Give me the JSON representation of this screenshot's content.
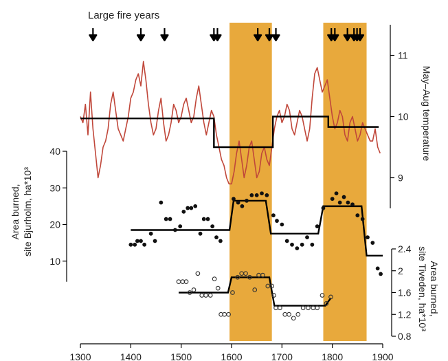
{
  "chart_data": {
    "type": "line",
    "title": "",
    "x_axis": {
      "range": [
        1300,
        1900
      ],
      "ticks": [
        1300,
        1400,
        1500,
        1600,
        1700,
        1800,
        1900
      ]
    },
    "shaded_periods": [
      {
        "start": 1596,
        "end": 1680,
        "color": "#e8a93c"
      },
      {
        "start": 1782,
        "end": 1868,
        "color": "#e8a93c"
      }
    ],
    "fire_years": {
      "label": "Large fire years",
      "years": [
        1325,
        1420,
        1467,
        1565,
        1572,
        1652,
        1675,
        1688,
        1798,
        1805,
        1830,
        1843,
        1849,
        1855
      ]
    },
    "temperature": {
      "axis_label": "May–Aug temperature",
      "range": [
        8.5,
        11.5
      ],
      "ticks": [
        9,
        10,
        11
      ],
      "color": "#c0473a",
      "x": [
        1300,
        1305,
        1310,
        1315,
        1320,
        1325,
        1330,
        1335,
        1340,
        1345,
        1350,
        1355,
        1360,
        1365,
        1370,
        1375,
        1380,
        1385,
        1390,
        1395,
        1400,
        1405,
        1410,
        1415,
        1420,
        1425,
        1430,
        1435,
        1440,
        1445,
        1450,
        1455,
        1460,
        1465,
        1470,
        1475,
        1480,
        1485,
        1490,
        1495,
        1500,
        1505,
        1510,
        1515,
        1520,
        1525,
        1530,
        1535,
        1540,
        1545,
        1550,
        1555,
        1560,
        1565,
        1570,
        1575,
        1580,
        1585,
        1590,
        1595,
        1600,
        1605,
        1610,
        1615,
        1620,
        1625,
        1630,
        1635,
        1640,
        1645,
        1650,
        1655,
        1660,
        1665,
        1670,
        1675,
        1680,
        1685,
        1690,
        1695,
        1700,
        1705,
        1710,
        1715,
        1720,
        1725,
        1730,
        1735,
        1740,
        1745,
        1750,
        1755,
        1760,
        1765,
        1770,
        1775,
        1780,
        1785,
        1790,
        1795,
        1800,
        1805,
        1810,
        1815,
        1820,
        1825,
        1830,
        1835,
        1840,
        1845,
        1850,
        1855,
        1860,
        1865,
        1870,
        1875,
        1880,
        1885,
        1890,
        1895
      ],
      "values": [
        10.0,
        9.9,
        10.2,
        9.7,
        10.4,
        9.8,
        9.4,
        9.0,
        9.2,
        9.5,
        9.6,
        9.8,
        10.2,
        10.4,
        10.1,
        9.8,
        9.7,
        9.6,
        9.8,
        10.0,
        10.3,
        10.4,
        10.6,
        10.7,
        10.5,
        10.9,
        10.6,
        10.2,
        9.9,
        9.7,
        9.8,
        10.1,
        10.3,
        9.9,
        9.6,
        9.7,
        9.9,
        10.2,
        10.1,
        9.9,
        10.0,
        10.2,
        10.3,
        10.1,
        9.9,
        10.0,
        10.3,
        10.5,
        10.2,
        9.9,
        9.7,
        9.9,
        10.1,
        10.0,
        9.7,
        9.5,
        9.3,
        9.2,
        9.0,
        8.9,
        8.9,
        9.1,
        9.4,
        9.6,
        9.3,
        9.0,
        9.2,
        9.5,
        9.6,
        9.3,
        9.0,
        9.1,
        9.4,
        9.5,
        9.3,
        9.2,
        9.5,
        9.8,
        10.0,
        10.1,
        9.9,
        10.0,
        10.2,
        10.1,
        9.8,
        9.7,
        9.9,
        10.1,
        10.0,
        9.8,
        9.6,
        9.8,
        10.3,
        10.7,
        10.8,
        10.6,
        10.4,
        10.5,
        10.6,
        10.3,
        10.0,
        9.8,
        9.9,
        10.1,
        10.0,
        9.7,
        9.6,
        9.9,
        10.0,
        9.8,
        9.6,
        9.7,
        9.9,
        9.8,
        9.7,
        9.6,
        9.6,
        9.8,
        9.5,
        9.4
      ],
      "steps": [
        {
          "x0": 1300,
          "x1": 1565,
          "y": 9.97
        },
        {
          "x0": 1565,
          "x1": 1682,
          "y": 9.5
        },
        {
          "x0": 1682,
          "x1": 1792,
          "y": 10.0
        },
        {
          "x0": 1792,
          "x1": 1892,
          "y": 9.83
        }
      ]
    },
    "bjurholm": {
      "axis_label_line1": "Area burned,",
      "axis_label_line2": "site Bjurholm, ha*10³",
      "range": [
        0,
        40
      ],
      "ticks": [
        10,
        20,
        30,
        40
      ],
      "points": [
        [
          1400,
          14.5
        ],
        [
          1408,
          14.5
        ],
        [
          1413,
          15.5
        ],
        [
          1420,
          15.5
        ],
        [
          1427,
          14.5
        ],
        [
          1440,
          17.5
        ],
        [
          1448,
          15.5
        ],
        [
          1460,
          26.0
        ],
        [
          1470,
          21.5
        ],
        [
          1478,
          21.5
        ],
        [
          1488,
          18.5
        ],
        [
          1498,
          19.5
        ],
        [
          1505,
          23.5
        ],
        [
          1513,
          24.5
        ],
        [
          1520,
          24.5
        ],
        [
          1528,
          25.0
        ],
        [
          1538,
          17.5
        ],
        [
          1545,
          21.5
        ],
        [
          1553,
          21.5
        ],
        [
          1562,
          19.5
        ],
        [
          1570,
          16.5
        ],
        [
          1578,
          15.5
        ],
        [
          1604,
          27.0
        ],
        [
          1613,
          26.0
        ],
        [
          1621,
          25.0
        ],
        [
          1630,
          26.5
        ],
        [
          1640,
          28.0
        ],
        [
          1650,
          28.0
        ],
        [
          1660,
          28.5
        ],
        [
          1670,
          28.0
        ],
        [
          1683,
          22.5
        ],
        [
          1690,
          21.0
        ],
        [
          1700,
          20.0
        ],
        [
          1710,
          15.5
        ],
        [
          1720,
          14.5
        ],
        [
          1730,
          13.5
        ],
        [
          1740,
          14.5
        ],
        [
          1750,
          16.5
        ],
        [
          1760,
          14.5
        ],
        [
          1770,
          19.5
        ],
        [
          1782,
          24.5
        ],
        [
          1800,
          27.0
        ],
        [
          1808,
          28.5
        ],
        [
          1815,
          26.0
        ],
        [
          1823,
          27.5
        ],
        [
          1831,
          26.0
        ],
        [
          1840,
          25.5
        ],
        [
          1850,
          22.5
        ],
        [
          1860,
          21.5
        ],
        [
          1870,
          16.5
        ],
        [
          1880,
          15.0
        ],
        [
          1890,
          8.0
        ],
        [
          1896,
          6.5
        ]
      ],
      "steps": [
        {
          "x0": 1400,
          "x1": 1596,
          "y": 18.5
        },
        {
          "x0": 1596,
          "x1": 1604,
          "y": 18.5,
          "y1": 26.5
        },
        {
          "x0": 1604,
          "x1": 1668,
          "y": 26.5
        },
        {
          "x0": 1668,
          "x1": 1678,
          "y": 26.5,
          "y1": 17.5
        },
        {
          "x0": 1678,
          "x1": 1772,
          "y": 17.5
        },
        {
          "x0": 1772,
          "x1": 1782,
          "y": 17.5,
          "y1": 25.0
        },
        {
          "x0": 1782,
          "x1": 1858,
          "y": 25.0
        },
        {
          "x0": 1858,
          "x1": 1868,
          "y": 25.0,
          "y1": 11.5
        },
        {
          "x0": 1868,
          "x1": 1900,
          "y": 11.5
        }
      ]
    },
    "tiveden": {
      "axis_label_line1": "Area burned,",
      "axis_label_line2": "site Tiveden, ha*10³",
      "range": [
        0.8,
        2.4
      ],
      "ticks": [
        0.8,
        1.2,
        1.6,
        2.0,
        2.4
      ],
      "tick_labels": [
        "0.8",
        "1.2",
        "1.6",
        "2",
        "2.4"
      ],
      "points": [
        [
          1495,
          1.8
        ],
        [
          1503,
          1.8
        ],
        [
          1510,
          1.8
        ],
        [
          1517,
          1.6
        ],
        [
          1525,
          1.65
        ],
        [
          1533,
          1.95
        ],
        [
          1541,
          1.55
        ],
        [
          1549,
          1.55
        ],
        [
          1558,
          1.55
        ],
        [
          1566,
          1.85
        ],
        [
          1573,
          1.68
        ],
        [
          1579,
          1.2
        ],
        [
          1586,
          1.2
        ],
        [
          1594,
          1.2
        ],
        [
          1602,
          1.6
        ],
        [
          1612,
          1.88
        ],
        [
          1620,
          1.95
        ],
        [
          1628,
          1.95
        ],
        [
          1636,
          1.88
        ],
        [
          1646,
          1.65
        ],
        [
          1654,
          1.92
        ],
        [
          1662,
          1.92
        ],
        [
          1672,
          1.72
        ],
        [
          1680,
          1.72
        ],
        [
          1684,
          1.55
        ],
        [
          1688,
          1.32
        ],
        [
          1696,
          1.32
        ],
        [
          1706,
          1.2
        ],
        [
          1714,
          1.2
        ],
        [
          1723,
          1.13
        ],
        [
          1732,
          1.2
        ],
        [
          1742,
          1.32
        ],
        [
          1752,
          1.32
        ],
        [
          1762,
          1.32
        ],
        [
          1770,
          1.32
        ],
        [
          1780,
          1.55
        ],
        [
          1788,
          1.4
        ],
        [
          1797,
          1.52
        ]
      ],
      "steps": [
        {
          "x0": 1495,
          "x1": 1593,
          "y": 1.6
        },
        {
          "x0": 1593,
          "x1": 1600,
          "y": 1.6,
          "y1": 1.88
        },
        {
          "x0": 1600,
          "x1": 1675,
          "y": 1.88
        },
        {
          "x0": 1675,
          "x1": 1685,
          "y": 1.88,
          "y1": 1.36
        },
        {
          "x0": 1685,
          "x1": 1786,
          "y": 1.36
        },
        {
          "x0": 1786,
          "x1": 1797,
          "y": 1.36,
          "y1": 1.5
        }
      ]
    }
  }
}
